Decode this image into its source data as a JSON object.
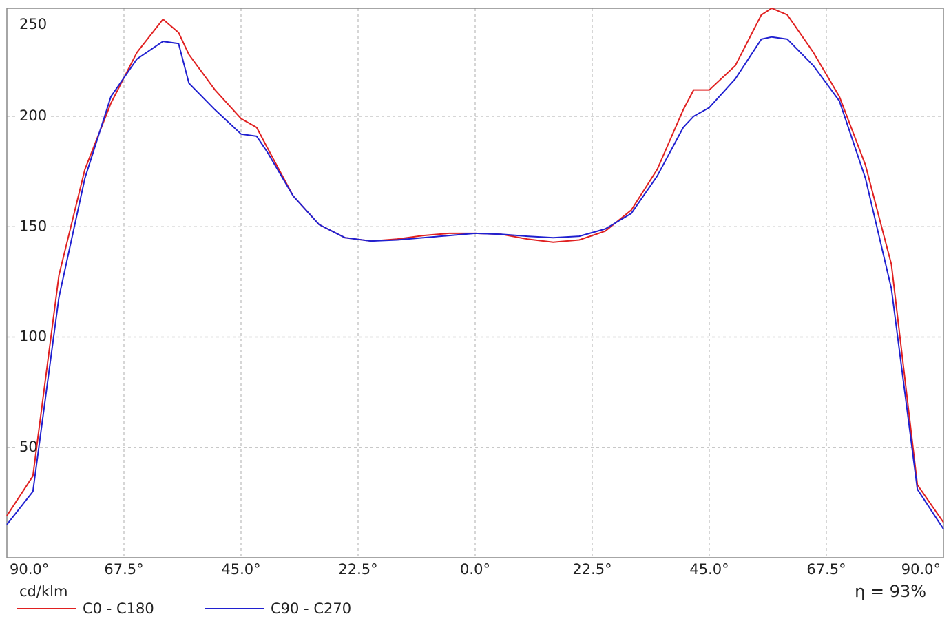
{
  "chart_data": {
    "type": "line",
    "y_label": "cd/klm",
    "annotation": "η = 93%",
    "x": [
      -90,
      -85,
      -80,
      -75,
      -70,
      -65,
      -60,
      -57,
      -55,
      -50,
      -45,
      -42,
      -40,
      -35,
      -30,
      -25,
      -20,
      -15,
      -10,
      -5,
      0,
      5,
      10,
      15,
      20,
      25,
      30,
      35,
      40,
      42,
      45,
      50,
      55,
      57,
      60,
      65,
      70,
      75,
      80,
      85,
      90
    ],
    "series": [
      {
        "name": "C0 - C180",
        "color": "#e02020",
        "values": [
          19,
          37,
          128,
          176,
          206,
          229,
          244,
          238,
          228,
          212,
          199,
          195,
          186,
          164,
          151,
          145,
          143.5,
          144.4,
          146,
          147,
          147,
          146.6,
          144.4,
          143,
          144,
          148,
          157.5,
          176,
          203,
          212,
          212,
          223,
          246,
          249,
          246,
          229,
          209,
          178,
          133,
          33,
          16
        ]
      },
      {
        "name": "C90 - C270",
        "color": "#2020d0",
        "values": [
          15,
          30,
          118,
          172,
          209,
          226,
          234,
          233,
          215,
          203,
          192,
          191,
          184,
          164,
          151,
          145,
          143.5,
          144,
          145,
          146,
          147,
          146.6,
          145.7,
          145,
          145.7,
          149,
          156,
          173,
          195,
          200,
          204,
          217,
          235,
          236,
          235,
          223,
          207,
          172,
          122,
          31,
          13
        ]
      }
    ],
    "xlim": [
      -90,
      90
    ],
    "xticks": [
      {
        "value": -90,
        "label": "90.0°"
      },
      {
        "value": -67.5,
        "label": "67.5°"
      },
      {
        "value": -45,
        "label": "45.0°"
      },
      {
        "value": -22.5,
        "label": "22.5°"
      },
      {
        "value": 0,
        "label": "0.0°"
      },
      {
        "value": 22.5,
        "label": "22.5°"
      },
      {
        "value": 45,
        "label": "45.0°"
      },
      {
        "value": 67.5,
        "label": "67.5°"
      },
      {
        "value": 90,
        "label": "90.0°"
      }
    ],
    "ylim": [
      0,
      249
    ],
    "yticks": [
      50,
      100,
      150,
      200,
      250
    ],
    "grid": true
  }
}
